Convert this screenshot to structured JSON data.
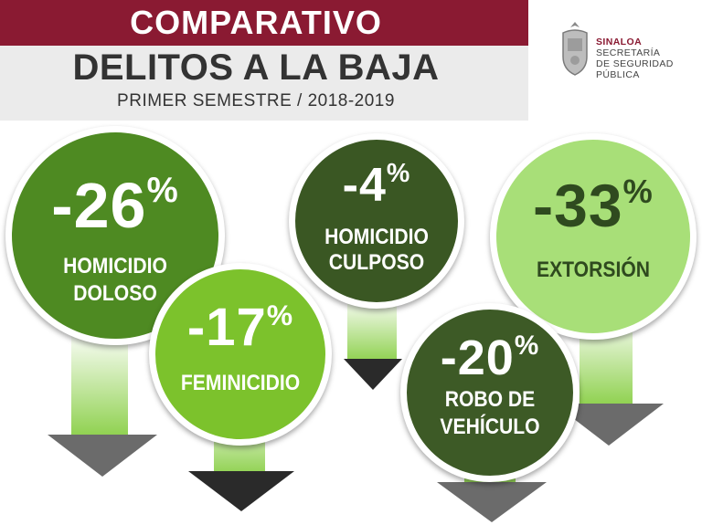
{
  "header": {
    "title": "COMPARATIVO",
    "subtitle": "DELITOS A LA BAJA",
    "period": "PRIMER SEMESTRE / 2018-2019"
  },
  "logo": {
    "line1": "SINALOA",
    "line2": "SECRETARÍA",
    "line3": "DE SEGURIDAD",
    "line4": "PÚBLICA"
  },
  "items": [
    {
      "value": "-26",
      "unit": "%",
      "label_1": "HOMICIDIO",
      "label_2": "DOLOSO",
      "color": "#4e8a22"
    },
    {
      "value": "-17",
      "unit": "%",
      "label_1": "FEMINICIDIO",
      "label_2": "",
      "color": "#7cc22c"
    },
    {
      "value": "-4",
      "unit": "%",
      "label_1": "HOMICIDIO",
      "label_2": "CULPOSO",
      "color": "#3a5723"
    },
    {
      "value": "-20",
      "unit": "%",
      "label_1": "ROBO DE",
      "label_2": "VEHÍCULO",
      "color": "#3d5a26"
    },
    {
      "value": "-33",
      "unit": "%",
      "label_1": "EXTORSIÓN",
      "label_2": "",
      "color": "#a8df78"
    }
  ]
}
